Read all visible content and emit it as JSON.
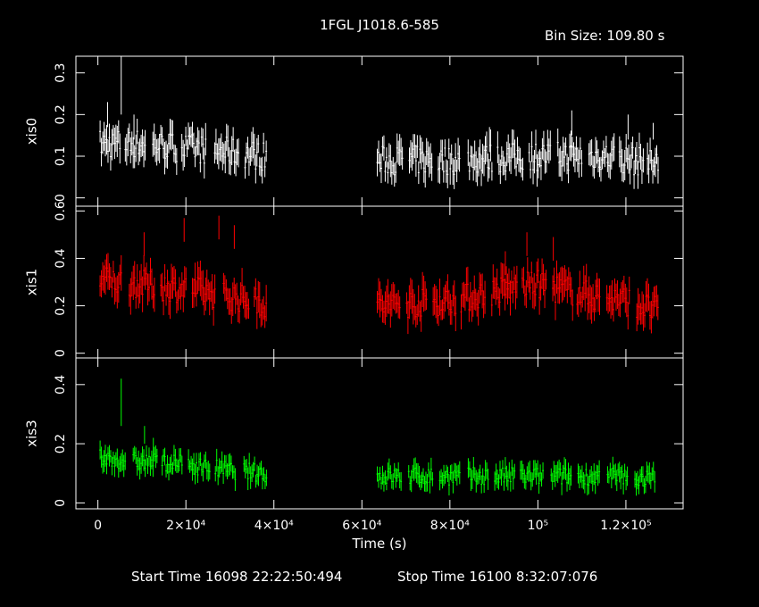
{
  "header": {
    "title": "1FGL J1018.6-585",
    "bin_size": "Bin Size: 109.80 s"
  },
  "footer": {
    "start_time": "Start Time 16098 22:22:50:494",
    "stop_time": "Stop Time 16100  8:32:07:076"
  },
  "colors": {
    "xis0": "#ffffff",
    "xis1": "#ff0000",
    "xis3": "#00ff00",
    "axes": "#ffffff",
    "background": "#000000"
  },
  "chart_data": {
    "type": "scatter",
    "title": "1FGL J1018.6-585",
    "xlabel": "Time (s)",
    "x_range": [
      -5000,
      133000
    ],
    "x_ticks": [
      {
        "value": 0,
        "label": "0"
      },
      {
        "value": 20000,
        "label": "2×10⁴"
      },
      {
        "value": 40000,
        "label": "4×10⁴"
      },
      {
        "value": 60000,
        "label": "6×10⁴"
      },
      {
        "value": 80000,
        "label": "8×10⁴"
      },
      {
        "value": 100000,
        "label": "10⁵"
      },
      {
        "value": 120000,
        "label": "1.2×10⁵"
      }
    ],
    "segments": [
      [
        500,
        38500
      ],
      [
        63500,
        127500
      ]
    ],
    "panels": [
      {
        "name": "xis0",
        "ylabel": "xis0",
        "ylim": [
          -0.02,
          0.34
        ],
        "y_ticks": [
          {
            "value": 0,
            "label": "0"
          },
          {
            "value": 0.1,
            "label": "0.1"
          },
          {
            "value": 0.2,
            "label": "0.2"
          },
          {
            "value": 0.3,
            "label": "0.3"
          }
        ],
        "series": [
          {
            "name": "xis0",
            "profile": [
              [
                0,
                0.13
              ],
              [
                10000,
                0.13
              ],
              [
                20000,
                0.12
              ],
              [
                30000,
                0.11
              ],
              [
                38000,
                0.1
              ],
              [
                64000,
                0.09
              ],
              [
                80000,
                0.09
              ],
              [
                100000,
                0.1
              ],
              [
                115000,
                0.1
              ],
              [
                127000,
                0.08
              ]
            ],
            "error": 0.03,
            "scatter": 0.035,
            "spikes": [
              {
                "x": 5300,
                "value": 0.34,
                "error": 0.07
              },
              {
                "x": 2200,
                "value": 0.23,
                "error": 0.03
              },
              {
                "x": 8200,
                "value": 0.2,
                "error": 0.03
              },
              {
                "x": 89000,
                "value": 0.17,
                "error": 0.03
              },
              {
                "x": 107700,
                "value": 0.21,
                "error": 0.03
              },
              {
                "x": 120500,
                "value": 0.2,
                "error": 0.03
              },
              {
                "x": 126200,
                "value": 0.18,
                "error": 0.02
              }
            ]
          }
        ]
      },
      {
        "name": "xis1",
        "ylabel": "xis1",
        "ylim": [
          -0.02,
          0.62
        ],
        "y_ticks": [
          {
            "value": 0,
            "label": "0"
          },
          {
            "value": 0.2,
            "label": "0.2"
          },
          {
            "value": 0.4,
            "label": "0.4"
          },
          {
            "value": 0.6,
            "label": "0.6"
          }
        ],
        "series": [
          {
            "name": "xis1",
            "profile": [
              [
                0,
                0.31
              ],
              [
                10000,
                0.29
              ],
              [
                20000,
                0.27
              ],
              [
                30000,
                0.24
              ],
              [
                38000,
                0.21
              ],
              [
                64000,
                0.2
              ],
              [
                80000,
                0.22
              ],
              [
                90000,
                0.26
              ],
              [
                100000,
                0.29
              ],
              [
                110000,
                0.25
              ],
              [
                120000,
                0.22
              ],
              [
                127000,
                0.18
              ]
            ],
            "error": 0.06,
            "scatter": 0.06,
            "spikes": [
              {
                "x": 19600,
                "value": 0.57,
                "error": 0.05
              },
              {
                "x": 27500,
                "value": 0.58,
                "error": 0.05
              },
              {
                "x": 31000,
                "value": 0.54,
                "error": 0.05
              },
              {
                "x": 10500,
                "value": 0.51,
                "error": 0.05
              },
              {
                "x": 97500,
                "value": 0.51,
                "error": 0.05
              },
              {
                "x": 103500,
                "value": 0.49,
                "error": 0.05
              },
              {
                "x": 92600,
                "value": 0.43,
                "error": 0.05
              }
            ]
          }
        ]
      },
      {
        "name": "xis3",
        "ylabel": "xis3",
        "ylim": [
          -0.02,
          0.49
        ],
        "y_ticks": [
          {
            "value": 0,
            "label": "0"
          },
          {
            "value": 0.2,
            "label": "0.2"
          },
          {
            "value": 0.4,
            "label": "0.4"
          }
        ],
        "series": [
          {
            "name": "xis3",
            "profile": [
              [
                0,
                0.15
              ],
              [
                10000,
                0.14
              ],
              [
                20000,
                0.13
              ],
              [
                30000,
                0.11
              ],
              [
                38000,
                0.1
              ],
              [
                64000,
                0.09
              ],
              [
                80000,
                0.09
              ],
              [
                100000,
                0.09
              ],
              [
                115000,
                0.09
              ],
              [
                127000,
                0.08
              ]
            ],
            "error": 0.03,
            "scatter": 0.03,
            "spikes": [
              {
                "x": 5300,
                "value": 0.42,
                "error": 0.08
              },
              {
                "x": 10600,
                "value": 0.26,
                "error": 0.03
              },
              {
                "x": 12600,
                "value": 0.22,
                "error": 0.03
              }
            ]
          }
        ]
      }
    ],
    "grid": false
  }
}
